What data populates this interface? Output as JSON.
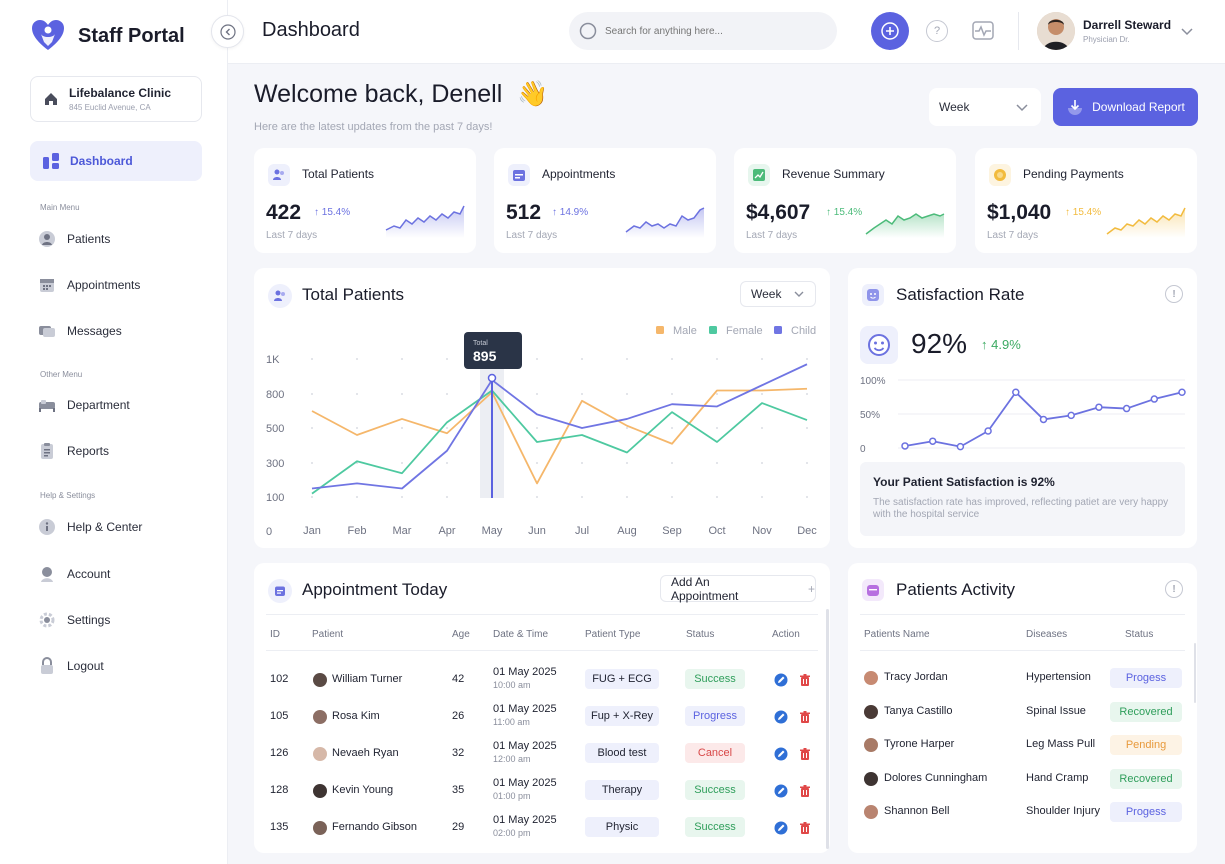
{
  "app": {
    "name": "Staff Portal",
    "page_title": "Dashboard"
  },
  "clinic": {
    "name": "Lifebalance Clinic",
    "address": "845 Euclid Avenue, CA"
  },
  "nav": {
    "active": "Dashboard",
    "main_label": "Main Menu",
    "other_label": "Other Menu",
    "help_label": "Help & Settings",
    "items": [
      "Patients",
      "Appointments",
      "Messages",
      "Department",
      "Reports",
      "Help & Center",
      "Account",
      "Settings",
      "Logout"
    ]
  },
  "search": {
    "placeholder": "Search for anything here..."
  },
  "user": {
    "name": "Darrell Steward",
    "role": "Physician Dr."
  },
  "welcome": {
    "title": "Welcome back, Denell",
    "emoji": "👋",
    "subtitle": "Here are the latest updates from the past 7 days!"
  },
  "range_select": "Week",
  "download_label": "Download Report",
  "stats": [
    {
      "title": "Total Patients",
      "value": "422",
      "change": "15.4%",
      "sub": "Last 7 days",
      "color": "#6c72e0"
    },
    {
      "title": "Appointments",
      "value": "512",
      "change": "14.9%",
      "sub": "Last 7 days",
      "color": "#6c72e0"
    },
    {
      "title": "Revenue Summary",
      "value": "$4,607",
      "change": "15.4%",
      "sub": "Last 7 days",
      "color": "#4cbb7a"
    },
    {
      "title": "Pending Payments",
      "value": "$1,040",
      "change": "15.4%",
      "sub": "Last 7 days",
      "color": "#f2bb3e"
    }
  ],
  "patients_chart": {
    "title": "Total Patients",
    "select": "Week",
    "tooltip_label": "Total",
    "tooltip_value": "895",
    "chart_data": {
      "type": "line",
      "categories": [
        "Jan",
        "Feb",
        "Mar",
        "Apr",
        "May",
        "Jun",
        "Jul",
        "Aug",
        "Sep",
        "Oct",
        "Nov",
        "Dec"
      ],
      "y_ticks": [
        "0",
        "100",
        "300",
        "500",
        "800",
        "1K"
      ],
      "series": [
        {
          "name": "Male",
          "color": "#f5b76b",
          "values": [
            650,
            460,
            580,
            470,
            810,
            180,
            740,
            520,
            410,
            820,
            820,
            830
          ]
        },
        {
          "name": "Female",
          "color": "#4ec9a0",
          "values": [
            120,
            310,
            240,
            550,
            820,
            420,
            460,
            360,
            640,
            420,
            720,
            570
          ]
        },
        {
          "name": "Child",
          "color": "#7075e3",
          "values": [
            150,
            180,
            150,
            370,
            880,
            620,
            500,
            580,
            710,
            690,
            850,
            970
          ]
        }
      ]
    }
  },
  "satisfaction": {
    "title": "Satisfaction Rate",
    "value": "92%",
    "change": "4.9%",
    "y_labels": [
      "100%",
      "50%",
      "0"
    ],
    "chart_data": {
      "type": "line",
      "series": [
        {
          "name": "Satisfaction",
          "values": [
            3,
            10,
            2,
            25,
            82,
            42,
            48,
            60,
            58,
            72,
            82
          ]
        }
      ],
      "ylim": [
        0,
        100
      ]
    },
    "box_title": "Your Patient Satisfaction is 92%",
    "box_text": "The satisfaction rate has improved, reflecting patiet are very happy with the hospital service"
  },
  "appointments": {
    "title": "Appointment Today",
    "add_label": "Add An Appointment",
    "columns": [
      "ID",
      "Patient",
      "Age",
      "Date & Time",
      "Patient Type",
      "Status",
      "Action"
    ],
    "rows": [
      {
        "id": "102",
        "patient": "William Turner",
        "age": "42",
        "date": "01 May 2025",
        "time": "10:00 am",
        "type": "FUG + ECG",
        "status": "Success"
      },
      {
        "id": "105",
        "patient": "Rosa Kim",
        "age": "26",
        "date": "01 May 2025",
        "time": "11:00 am",
        "type": "Fup + X-Rey",
        "status": "Progress"
      },
      {
        "id": "126",
        "patient": "Nevaeh Ryan",
        "age": "32",
        "date": "01 May 2025",
        "time": "12:00 am",
        "type": "Blood test",
        "status": "Cancel"
      },
      {
        "id": "128",
        "patient": "Kevin Young",
        "age": "35",
        "date": "01 May 2025",
        "time": "01:00 pm",
        "type": "Therapy",
        "status": "Success"
      },
      {
        "id": "135",
        "patient": "Fernando Gibson",
        "age": "29",
        "date": "01 May 2025",
        "time": "02:00 pm",
        "type": "Physic",
        "status": "Success"
      }
    ]
  },
  "activity": {
    "title": "Patients Activity",
    "columns": [
      "Patients Name",
      "Diseases",
      "Status"
    ],
    "rows": [
      {
        "name": "Tracy Jordan",
        "disease": "Hypertension",
        "status": "Progess"
      },
      {
        "name": "Tanya Castillo",
        "disease": "Spinal Issue",
        "status": "Recovered"
      },
      {
        "name": "Tyrone Harper",
        "disease": "Leg Mass Pull",
        "status": "Pending"
      },
      {
        "name": "Dolores Cunningham",
        "disease": "Hand Cramp",
        "status": "Recovered"
      },
      {
        "name": "Shannon Bell",
        "disease": "Shoulder Injury",
        "status": "Progess"
      }
    ]
  }
}
